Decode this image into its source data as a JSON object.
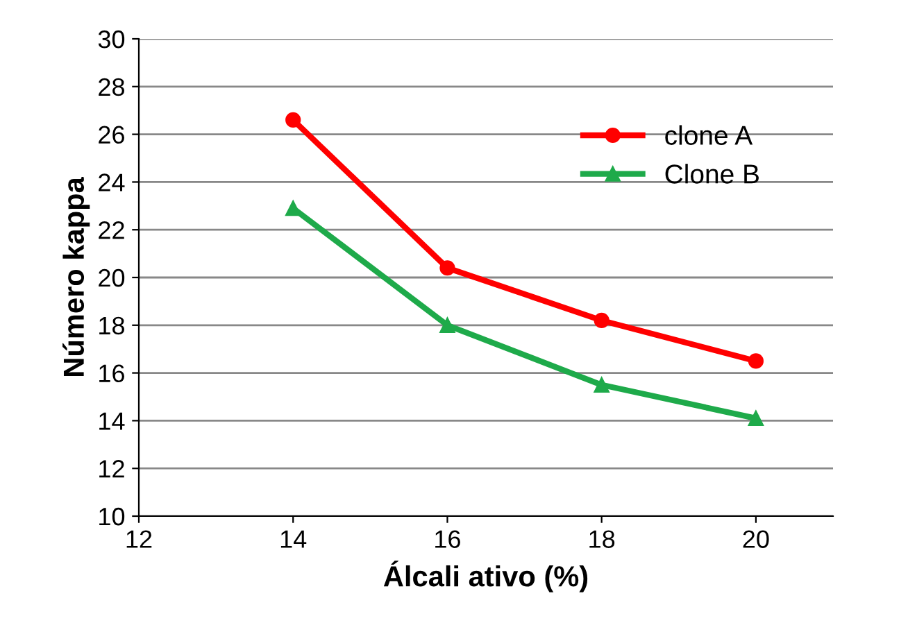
{
  "chart_data": {
    "type": "line",
    "xlabel": "Álcali ativo (%)",
    "ylabel": "Número kappa",
    "x": [
      14,
      16,
      18,
      20
    ],
    "series": [
      {
        "name": "clone A",
        "color": "#ff0000",
        "values": [
          26.6,
          20.4,
          18.2,
          16.5
        ],
        "marker": "circle"
      },
      {
        "name": "Clone B",
        "color": "#1eaa4a",
        "values": [
          22.9,
          18.0,
          15.5,
          14.1
        ],
        "marker": "triangle"
      }
    ],
    "xlim": [
      12,
      21
    ],
    "xticks": [
      12,
      14,
      16,
      18,
      20
    ],
    "ylim": [
      10,
      30
    ],
    "yticks": [
      10,
      12,
      14,
      16,
      18,
      20,
      22,
      24,
      26,
      28,
      30
    ],
    "grid": "y",
    "legend": "top right",
    "line_style": "solid"
  }
}
